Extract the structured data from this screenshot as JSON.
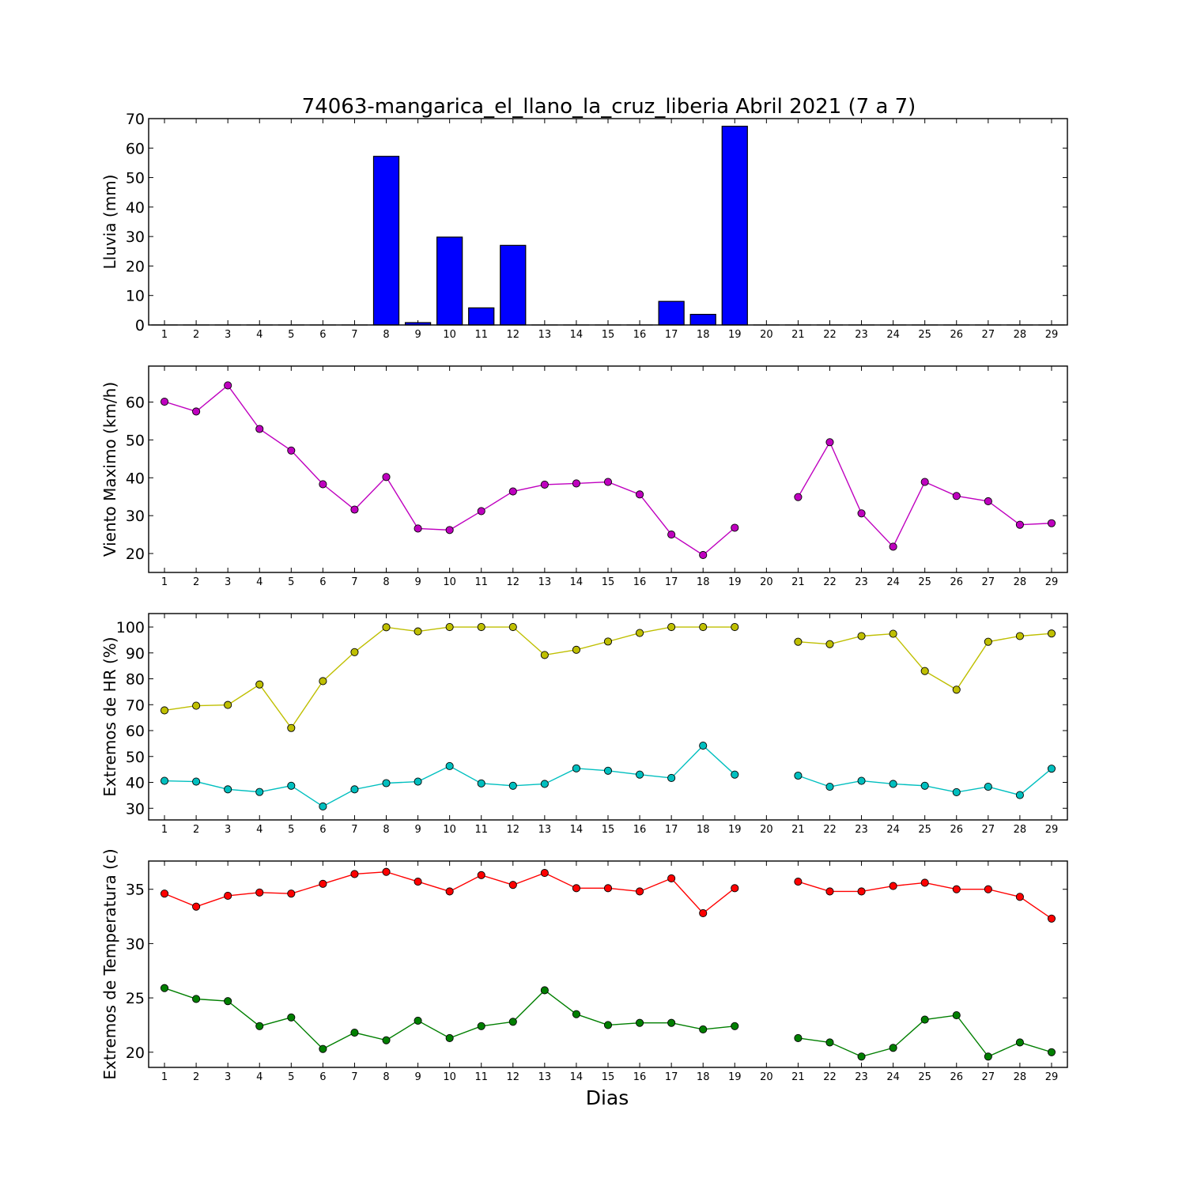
{
  "figure": {
    "title": "74063-mangarica_el_llano_la_cruz_liberia Abril 2021  (7 a 7)",
    "xlabel": "Dias"
  },
  "chart_data": [
    {
      "type": "bar",
      "ylabel": "Lluvia (mm)",
      "ylim": [
        0,
        70
      ],
      "yticks": [
        0,
        10,
        20,
        30,
        40,
        50,
        60,
        70
      ],
      "xlim": [
        0.5,
        29.5
      ],
      "categories": [
        1,
        2,
        3,
        4,
        5,
        6,
        7,
        8,
        9,
        10,
        11,
        12,
        13,
        14,
        15,
        16,
        17,
        18,
        19,
        20,
        21,
        22,
        23,
        24,
        25,
        26,
        27,
        28,
        29
      ],
      "values": [
        0,
        0,
        0,
        0,
        0,
        0,
        0,
        57.2,
        0.8,
        29.8,
        5.8,
        27.0,
        0,
        0,
        0,
        0,
        8.0,
        3.6,
        67.4,
        0,
        0,
        0,
        0,
        0,
        0,
        0,
        0,
        0,
        0
      ],
      "color": "#0000ff"
    },
    {
      "type": "line",
      "ylabel": "Viento Maximo (km/h)",
      "ylim": [
        15,
        69.5
      ],
      "yticks": [
        20,
        30,
        40,
        50,
        60
      ],
      "xlim": [
        0.5,
        29.5
      ],
      "x": [
        1,
        2,
        3,
        4,
        5,
        6,
        7,
        8,
        9,
        10,
        11,
        12,
        13,
        14,
        15,
        16,
        17,
        18,
        19,
        20,
        21,
        22,
        23,
        24,
        25,
        26,
        27,
        28,
        29
      ],
      "series": [
        {
          "color": "#bf00bf",
          "values": [
            60.1,
            57.5,
            64.4,
            52.9,
            47.2,
            38.3,
            31.6,
            40.2,
            26.6,
            26.2,
            31.2,
            36.4,
            38.2,
            38.5,
            38.9,
            35.6,
            25.0,
            19.6,
            26.8,
            null,
            34.9,
            49.4,
            30.6,
            21.8,
            38.9,
            35.2,
            33.8,
            27.6,
            28.0
          ]
        }
      ]
    },
    {
      "type": "line",
      "ylabel": "Extremos de HR (%)",
      "ylim": [
        25.5,
        105.2
      ],
      "yticks": [
        30,
        40,
        50,
        60,
        70,
        80,
        90,
        100
      ],
      "xlim": [
        0.5,
        29.5
      ],
      "x": [
        1,
        2,
        3,
        4,
        5,
        6,
        7,
        8,
        9,
        10,
        11,
        12,
        13,
        14,
        15,
        16,
        17,
        18,
        19,
        20,
        21,
        22,
        23,
        24,
        25,
        26,
        27,
        28,
        29
      ],
      "series": [
        {
          "color": "#bfbf00",
          "values": [
            67.8,
            69.6,
            69.9,
            77.8,
            61.0,
            79.1,
            90.3,
            99.9,
            98.3,
            100,
            100,
            100,
            89.2,
            91.2,
            94.4,
            97.7,
            100,
            100,
            100,
            null,
            94.3,
            93.4,
            96.5,
            97.4,
            83.0,
            75.8,
            94.3,
            96.5,
            97.5
          ]
        },
        {
          "color": "#00bfbf",
          "values": [
            40.6,
            40.3,
            37.3,
            36.3,
            38.7,
            30.7,
            37.3,
            39.7,
            40.3,
            46.3,
            39.6,
            38.7,
            39.4,
            45.4,
            44.5,
            43.0,
            41.7,
            54.2,
            43.0,
            null,
            42.6,
            38.3,
            40.6,
            39.4,
            38.7,
            36.2,
            38.3,
            35.1,
            45.3
          ]
        }
      ]
    },
    {
      "type": "line",
      "ylabel": "Extremos de Temperatura (c)",
      "ylim": [
        18.6,
        37.6
      ],
      "yticks": [
        20,
        25,
        30,
        35
      ],
      "xlim": [
        0.5,
        29.5
      ],
      "x": [
        1,
        2,
        3,
        4,
        5,
        6,
        7,
        8,
        9,
        10,
        11,
        12,
        13,
        14,
        15,
        16,
        17,
        18,
        19,
        20,
        21,
        22,
        23,
        24,
        25,
        26,
        27,
        28,
        29
      ],
      "series": [
        {
          "color": "#ff0000",
          "values": [
            34.6,
            33.4,
            34.4,
            34.7,
            34.6,
            35.5,
            36.4,
            36.6,
            35.7,
            34.8,
            36.3,
            35.4,
            36.5,
            35.1,
            35.1,
            34.8,
            36.0,
            32.8,
            35.1,
            null,
            35.7,
            34.8,
            34.8,
            35.3,
            35.6,
            35.0,
            35.0,
            34.3,
            32.3
          ]
        },
        {
          "color": "#007f00",
          "values": [
            25.9,
            24.9,
            24.7,
            22.4,
            23.2,
            20.3,
            21.8,
            21.1,
            22.9,
            21.3,
            22.4,
            22.8,
            25.7,
            23.5,
            22.5,
            22.7,
            22.7,
            22.1,
            22.4,
            null,
            21.3,
            20.9,
            19.6,
            20.4,
            23.0,
            23.4,
            19.6,
            20.9,
            20.0
          ]
        }
      ]
    }
  ]
}
